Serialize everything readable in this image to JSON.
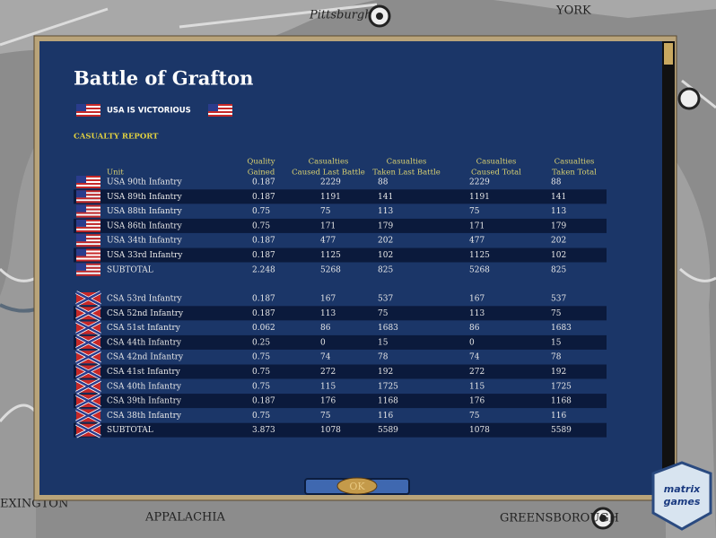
{
  "map_labels": {
    "pittsburgh": "Pittsburgh",
    "york": "YORK",
    "appalachia": "APPALACHIA",
    "greensborough": "GREENSBOROUGH",
    "lexington": "EXINGTON"
  },
  "dialog": {
    "title": "Battle of Grafton",
    "result": "USA IS VICTORIOUS",
    "section": "CASUALTY REPORT",
    "button": "OK"
  },
  "table": {
    "headers": [
      [
        "Unit"
      ],
      [
        "Quality",
        "Gained"
      ],
      [
        "Casualties",
        "Caused Last Battle"
      ],
      [
        "Casualties",
        "Taken Last Battle"
      ],
      [
        "Casualties",
        "Caused Total"
      ],
      [
        "Casualties",
        "Taken Total"
      ]
    ],
    "usa_rows": [
      [
        "USA 90th Infantry",
        "0.187",
        "2229",
        "88",
        "2229",
        "88"
      ],
      [
        "USA 89th Infantry",
        "0.187",
        "1191",
        "141",
        "1191",
        "141"
      ],
      [
        "USA 88th Infantry",
        "0.75",
        "75",
        "113",
        "75",
        "113"
      ],
      [
        "USA 86th Infantry",
        "0.75",
        "171",
        "179",
        "171",
        "179"
      ],
      [
        "USA 34th Infantry",
        "0.187",
        "477",
        "202",
        "477",
        "202"
      ],
      [
        "USA 33rd Infantry",
        "0.187",
        "1125",
        "102",
        "1125",
        "102"
      ],
      [
        "SUBTOTAL",
        "2.248",
        "5268",
        "825",
        "5268",
        "825"
      ]
    ],
    "csa_rows": [
      [
        "CSA 53rd Infantry",
        "0.187",
        "167",
        "537",
        "167",
        "537"
      ],
      [
        "CSA 52nd Infantry",
        "0.187",
        "113",
        "75",
        "113",
        "75"
      ],
      [
        "CSA 51st Infantry",
        "0.062",
        "86",
        "1683",
        "86",
        "1683"
      ],
      [
        "CSA 44th Infantry",
        "0.25",
        "0",
        "15",
        "0",
        "15"
      ],
      [
        "CSA 42nd Infantry",
        "0.75",
        "74",
        "78",
        "74",
        "78"
      ],
      [
        "CSA 41st Infantry",
        "0.75",
        "272",
        "192",
        "272",
        "192"
      ],
      [
        "CSA 40th Infantry",
        "0.75",
        "115",
        "1725",
        "115",
        "1725"
      ],
      [
        "CSA 39th Infantry",
        "0.187",
        "176",
        "1168",
        "176",
        "1168"
      ],
      [
        "CSA 38th Infantry",
        "0.75",
        "75",
        "116",
        "75",
        "116"
      ],
      [
        "SUBTOTAL",
        "3.873",
        "1078",
        "5589",
        "1078",
        "5589"
      ]
    ]
  },
  "logo": {
    "line1": "matrix",
    "line2": "games"
  }
}
